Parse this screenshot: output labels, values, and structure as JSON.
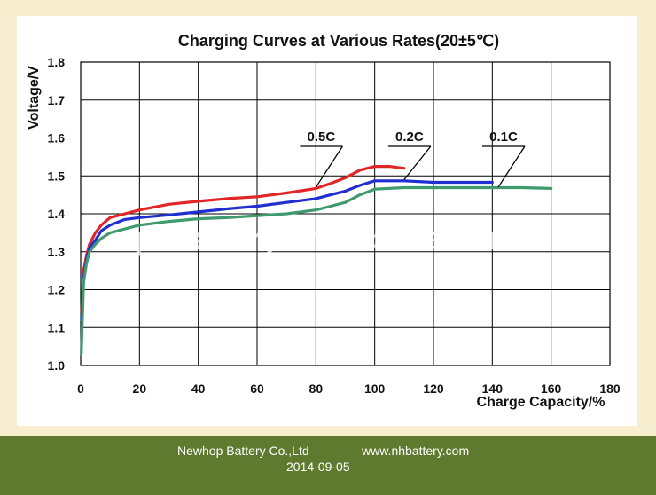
{
  "chart_data": {
    "type": "line",
    "title": "Charging Curves at Various Rates(20±5℃)",
    "xlabel": "Charge Capacity/%",
    "ylabel": "Voltage/V",
    "xlim": [
      0,
      180
    ],
    "ylim": [
      1.0,
      1.8
    ],
    "xticks": [
      "0",
      "20",
      "40",
      "60",
      "80",
      "100",
      "120",
      "140",
      "160",
      "180"
    ],
    "yticks": [
      "1.0",
      "1.1",
      "1.2",
      "1.3",
      "1.4",
      "1.5",
      "1.6",
      "1.7",
      "1.8"
    ],
    "grid": true,
    "series": [
      {
        "name": "0.5C",
        "color": "#e02626",
        "x": [
          0.3,
          1,
          2,
          3,
          5,
          7,
          10,
          15,
          20,
          30,
          40,
          50,
          60,
          70,
          80,
          85,
          90,
          95,
          100,
          105,
          110
        ],
        "y": [
          1.14,
          1.25,
          1.29,
          1.32,
          1.35,
          1.37,
          1.39,
          1.4,
          1.41,
          1.425,
          1.433,
          1.44,
          1.445,
          1.455,
          1.467,
          1.48,
          1.495,
          1.515,
          1.525,
          1.525,
          1.52
        ]
      },
      {
        "name": "0.2C",
        "color": "#1f2fd0",
        "x": [
          0.3,
          1,
          2,
          3,
          5,
          7,
          10,
          15,
          20,
          30,
          40,
          50,
          60,
          70,
          80,
          85,
          90,
          95,
          100,
          110,
          120,
          130,
          140
        ],
        "y": [
          1.12,
          1.23,
          1.28,
          1.31,
          1.33,
          1.355,
          1.37,
          1.385,
          1.39,
          1.397,
          1.405,
          1.413,
          1.42,
          1.43,
          1.44,
          1.45,
          1.46,
          1.475,
          1.487,
          1.487,
          1.483,
          1.483,
          1.483
        ]
      },
      {
        "name": "0.1C",
        "color": "#3f9a6e",
        "x": [
          0.2,
          1,
          2,
          3,
          5,
          7,
          10,
          15,
          20,
          30,
          40,
          50,
          60,
          70,
          80,
          85,
          90,
          95,
          100,
          110,
          120,
          130,
          140,
          150,
          160
        ],
        "y": [
          1.03,
          1.22,
          1.27,
          1.3,
          1.32,
          1.335,
          1.35,
          1.36,
          1.37,
          1.38,
          1.387,
          1.39,
          1.395,
          1.4,
          1.41,
          1.42,
          1.43,
          1.45,
          1.465,
          1.469,
          1.469,
          1.469,
          1.469,
          1.469,
          1.467
        ]
      }
    ],
    "annotations": [
      {
        "text": "0.5C",
        "x": 80,
        "y": 1.47
      },
      {
        "text": "0.2C",
        "x": 110,
        "y": 1.49
      },
      {
        "text": "0.1C",
        "x": 142,
        "y": 1.47
      }
    ],
    "watermark": "nhpobattery.en.alibaba.com"
  },
  "footer": {
    "company": "Newhop Battery Co.,Ltd",
    "website": "www.nhbattery.com",
    "date": "2014-09-05"
  }
}
